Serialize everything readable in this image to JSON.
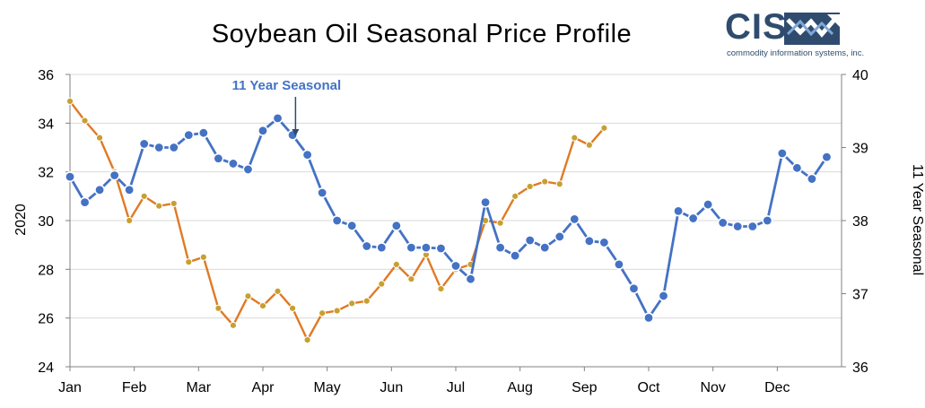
{
  "title": "Soybean Oil Seasonal Price Profile",
  "logo": {
    "name": "CIS",
    "tagline": "commodity information systems, inc."
  },
  "chart_data": {
    "type": "line",
    "title": "Soybean Oil Seasonal Price Profile",
    "xlabel": "",
    "ylabel_left": "2020",
    "ylabel_right": "11 Year Seasonal",
    "ylim_left": [
      24,
      36
    ],
    "ylim_right": [
      36,
      40
    ],
    "yticks_left": [
      24,
      26,
      28,
      30,
      32,
      34,
      36
    ],
    "yticks_right": [
      36,
      37,
      38,
      39,
      40
    ],
    "grid": true,
    "categories": [
      "Jan",
      "Feb",
      "Mar",
      "Apr",
      "May",
      "Jun",
      "Jul",
      "Aug",
      "Sep",
      "Oct",
      "Nov",
      "Dec"
    ],
    "annotation": {
      "text": "11 Year Seasonal",
      "week": 15.2
    },
    "series": [
      {
        "name": "2020",
        "axis": "left",
        "color": "#e07a24",
        "marker_color": "#c8a030",
        "points": [
          [
            0,
            34.9
          ],
          [
            1,
            34.1
          ],
          [
            2,
            33.4
          ],
          [
            3,
            32.0
          ],
          [
            4,
            30.0
          ],
          [
            5,
            31.0
          ],
          [
            6,
            30.6
          ],
          [
            7,
            30.7
          ],
          [
            8,
            28.3
          ],
          [
            9,
            28.5
          ],
          [
            10,
            26.4
          ],
          [
            11,
            25.7
          ],
          [
            12,
            26.9
          ],
          [
            13,
            26.5
          ],
          [
            14,
            27.1
          ],
          [
            15,
            26.4
          ],
          [
            16,
            25.1
          ],
          [
            17,
            26.2
          ],
          [
            18,
            26.3
          ],
          [
            19,
            26.6
          ],
          [
            20,
            26.7
          ],
          [
            21,
            27.4
          ],
          [
            22,
            28.2
          ],
          [
            23,
            27.6
          ],
          [
            24,
            28.6
          ],
          [
            25,
            27.2
          ],
          [
            26,
            28.0
          ],
          [
            27,
            28.2
          ],
          [
            28,
            30.0
          ],
          [
            29,
            29.9
          ],
          [
            30,
            31.0
          ],
          [
            31,
            31.4
          ],
          [
            32,
            31.6
          ],
          [
            33,
            31.5
          ],
          [
            34,
            33.4
          ],
          [
            35,
            33.1
          ],
          [
            36,
            33.8
          ]
        ]
      },
      {
        "name": "11 Year Seasonal",
        "axis": "right",
        "color": "#4472c4",
        "marker_color": "#4472c4",
        "points": [
          [
            0,
            38.6
          ],
          [
            1,
            38.25
          ],
          [
            2,
            38.42
          ],
          [
            3,
            38.62
          ],
          [
            4,
            38.42
          ],
          [
            5,
            39.05
          ],
          [
            6,
            39.0
          ],
          [
            7,
            39.0
          ],
          [
            8,
            39.17
          ],
          [
            9,
            39.2
          ],
          [
            10,
            38.85
          ],
          [
            11,
            38.78
          ],
          [
            12,
            38.7
          ],
          [
            13,
            39.23
          ],
          [
            14,
            39.4
          ],
          [
            15,
            39.17
          ],
          [
            16,
            38.9
          ],
          [
            17,
            38.38
          ],
          [
            18,
            38.0
          ],
          [
            19,
            37.93
          ],
          [
            20,
            37.65
          ],
          [
            21,
            37.63
          ],
          [
            22,
            37.93
          ],
          [
            23,
            37.63
          ],
          [
            24,
            37.63
          ],
          [
            25,
            37.62
          ],
          [
            26,
            37.38
          ],
          [
            27,
            37.2
          ],
          [
            28,
            38.25
          ],
          [
            29,
            37.63
          ],
          [
            30,
            37.52
          ],
          [
            31,
            37.73
          ],
          [
            32,
            37.63
          ],
          [
            33,
            37.78
          ],
          [
            34,
            38.02
          ],
          [
            35,
            37.72
          ],
          [
            36,
            37.7
          ],
          [
            37,
            37.4
          ],
          [
            38,
            37.07
          ],
          [
            39,
            36.67
          ],
          [
            40,
            36.97
          ],
          [
            41,
            38.13
          ],
          [
            42,
            38.03
          ],
          [
            43,
            38.22
          ],
          [
            44,
            37.97
          ],
          [
            45,
            37.92
          ],
          [
            46,
            37.92
          ],
          [
            47,
            38.0
          ],
          [
            48,
            38.92
          ],
          [
            49,
            38.72
          ],
          [
            50,
            38.57
          ],
          [
            51,
            38.87
          ]
        ]
      }
    ]
  }
}
